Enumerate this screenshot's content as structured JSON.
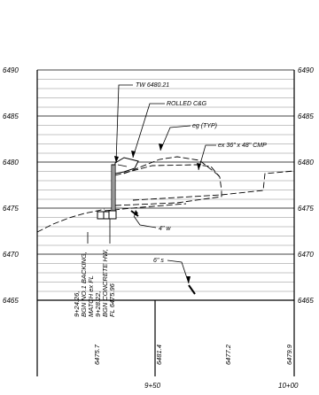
{
  "profile": {
    "elevations_left": [
      "6490",
      "6485",
      "6480",
      "6475",
      "6470",
      "6465"
    ],
    "elevations_right": [
      "6490",
      "6485",
      "6480",
      "6475",
      "6470",
      "6465"
    ],
    "callouts": {
      "tw": "TW 6480.21",
      "rolled": "ROLLED C&G",
      "eg": "eg (TYP)",
      "cmp": "ex 36\" x 48\" CMP",
      "w4": "4\" w",
      "s6": "6\" s"
    },
    "vertical_notes": {
      "note1": [
        "9+24.26,",
        "BGN NO.1 BACKING,",
        "MATCH ex FL"
      ],
      "note2": [
        "9+28.22,",
        "BGN CONCRETE HW,",
        "FL 6475.96"
      ]
    },
    "grade_labels": [
      "6475.7",
      "6481.4",
      "6477.2",
      "6479.9"
    ],
    "stations": [
      "9+50",
      "10+00"
    ]
  }
}
